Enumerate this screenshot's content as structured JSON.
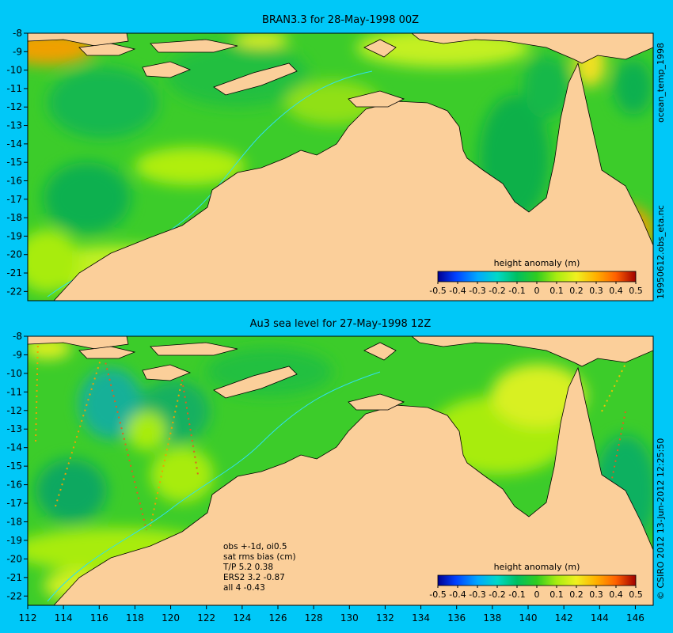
{
  "top_panel": {
    "title": "BRAN3.3 for 28-May-1998 00Z",
    "y_ticks": [
      "-8",
      "-9",
      "-10",
      "-11",
      "-12",
      "-13",
      "-14",
      "-15",
      "-16",
      "-17",
      "-18",
      "-19",
      "-20",
      "-21",
      "-22"
    ],
    "colorbar": {
      "label": "height anomaly  (m)",
      "ticks": [
        "-0.5",
        "-0.4",
        "-0.3",
        "-0.2",
        "-0.1",
        "0",
        "0.1",
        "0.2",
        "0.3",
        "0.4",
        "0.5"
      ]
    }
  },
  "bottom_panel": {
    "title": "Au3 sea level  for 27-May-1998 12Z",
    "y_ticks": [
      "-8",
      "-9",
      "-10",
      "-11",
      "-12",
      "-13",
      "-14",
      "-15",
      "-16",
      "-17",
      "-18",
      "-19",
      "-20",
      "-21",
      "-22"
    ],
    "x_ticks": [
      "112",
      "114",
      "116",
      "118",
      "120",
      "122",
      "124",
      "126",
      "128",
      "130",
      "132",
      "134",
      "136",
      "138",
      "140",
      "142",
      "144",
      "146"
    ],
    "colorbar": {
      "label": "height anomaly  (m)",
      "ticks": [
        "-0.5",
        "-0.4",
        "-0.3",
        "-0.2",
        "-0.1",
        "0",
        "0.1",
        "0.2",
        "0.3",
        "0.4",
        "0.5"
      ]
    },
    "notes": [
      "obs +-1d, oi0.5",
      "sat rms bias (cm)",
      "T/P  5.2 0.38",
      "ERS2 3.2 -0.87",
      "all 4 -0.43"
    ]
  },
  "side_labels": {
    "top_upper": "ocean_temp_1998",
    "top_lower": "19950612.obs_eta.nc",
    "bottom": "© CSIRO 2012   13-Jun-2012 12:25:50"
  },
  "colors": {
    "background": "#00c8f8",
    "land": "#fbcf9a",
    "ocean_base": "#32cc2a",
    "colorbar_scale": [
      "#000090",
      "#0040ff",
      "#00b0ff",
      "#00d8c8",
      "#00c060",
      "#40d020",
      "#b0ee10",
      "#f0f020",
      "#ffc000",
      "#ff7000",
      "#d03000",
      "#a00000"
    ]
  },
  "map_data": {
    "lon_range": [
      112,
      147
    ],
    "lat_range": [
      -22.5,
      -8
    ]
  }
}
